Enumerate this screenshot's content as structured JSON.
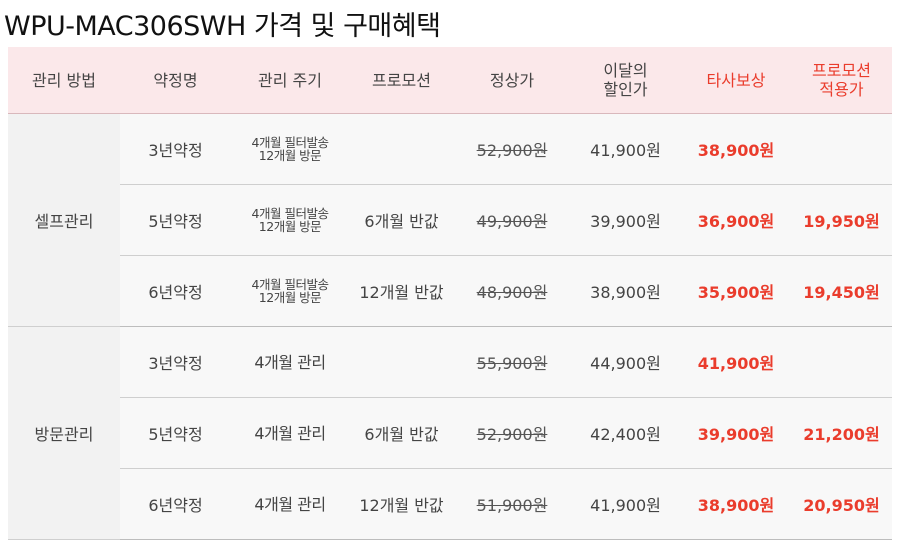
{
  "title": "WPU-MAC306SWH 가격 및 구매혜택",
  "headers": [
    {
      "text": "관리 방법",
      "red": false
    },
    {
      "text": "약정명",
      "red": false
    },
    {
      "text": "관리 주기",
      "red": false
    },
    {
      "text": "프로모션",
      "red": false
    },
    {
      "text": "정상가",
      "red": false
    },
    {
      "line1": "이달의",
      "line2": "할인가",
      "red": false
    },
    {
      "text": "타사보상",
      "red": true
    },
    {
      "line1": "프로모션",
      "line2": "적용가",
      "red": true
    }
  ],
  "groups": [
    {
      "method": "셀프관리",
      "rows": [
        {
          "contract": "3년약정",
          "cycle1": "4개월 필터발송",
          "cycle2": "12개월 방문",
          "promotion": "",
          "regular": "52,900원",
          "discount": "41,900원",
          "trade": "38,900원",
          "promo_price": ""
        },
        {
          "contract": "5년약정",
          "cycle1": "4개월 필터발송",
          "cycle2": "12개월 방문",
          "promotion": "6개월 반값",
          "regular": "49,900원",
          "discount": "39,900원",
          "trade": "36,900원",
          "promo_price": "19,950원"
        },
        {
          "contract": "6년약정",
          "cycle1": "4개월 필터발송",
          "cycle2": "12개월 방문",
          "promotion": "12개월 반값",
          "regular": "48,900원",
          "discount": "38,900원",
          "trade": "35,900원",
          "promo_price": "19,450원"
        }
      ]
    },
    {
      "method": "방문관리",
      "rows": [
        {
          "contract": "3년약정",
          "cycle1": "4개월 관리",
          "cycle2": "",
          "promotion": "",
          "regular": "55,900원",
          "discount": "44,900원",
          "trade": "41,900원",
          "promo_price": ""
        },
        {
          "contract": "5년약정",
          "cycle1": "4개월 관리",
          "cycle2": "",
          "promotion": "6개월 반값",
          "regular": "52,900원",
          "discount": "42,400원",
          "trade": "39,900원",
          "promo_price": "21,200원"
        },
        {
          "contract": "6년약정",
          "cycle1": "4개월 관리",
          "cycle2": "",
          "promotion": "12개월 반값",
          "regular": "51,900원",
          "discount": "41,900원",
          "trade": "38,900원",
          "promo_price": "20,950원"
        }
      ]
    }
  ]
}
